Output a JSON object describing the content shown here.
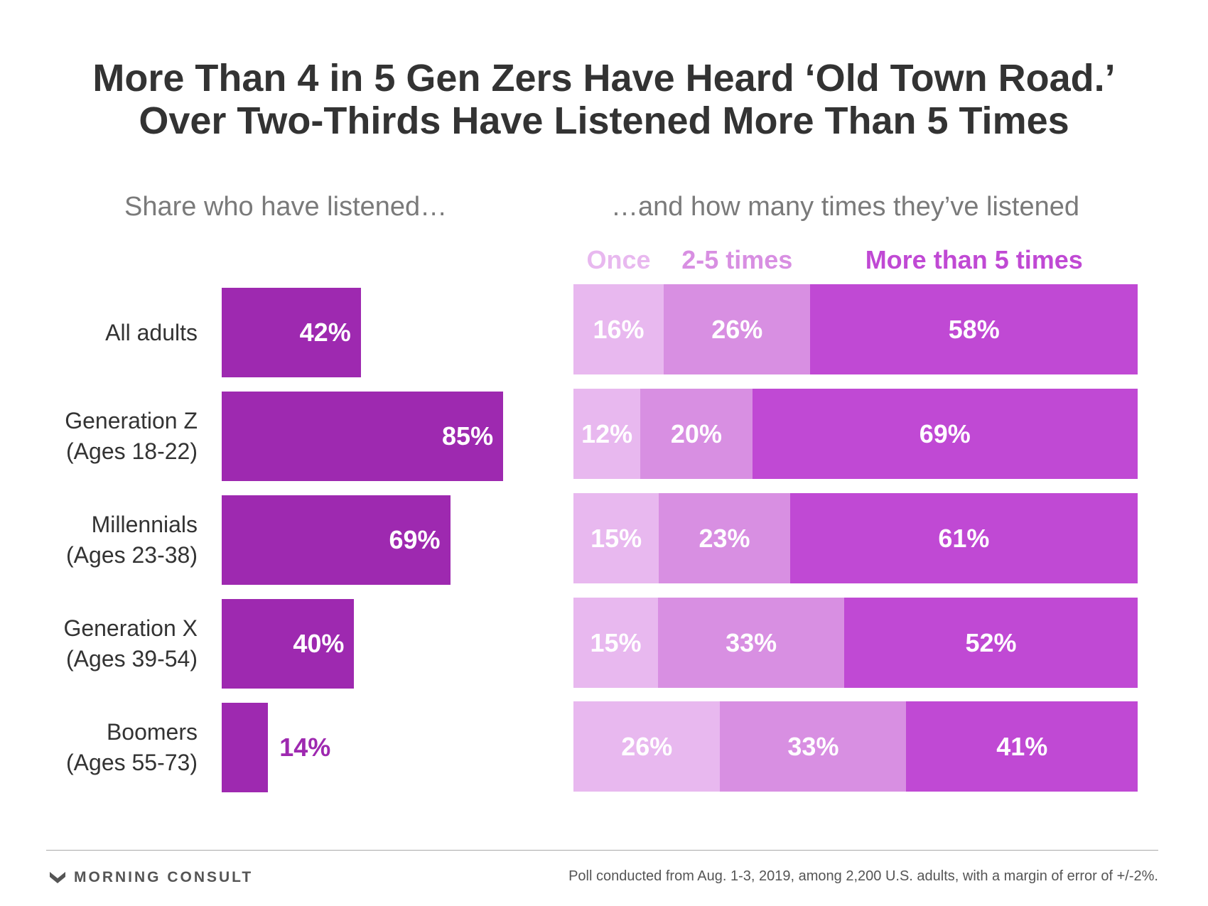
{
  "title_lines": [
    "More Than 4 in 5 Gen Zers Have Heard ‘Old Town Road.’",
    "Over Two-Thirds Have Listened More Than 5 Times"
  ],
  "subtitle_left": "Share who have listened…",
  "subtitle_right": "…and how many times they’ve listened",
  "colors": {
    "left_bar": "#9e29b0",
    "once": "#e8b8ef",
    "two_to_five": "#d88fe2",
    "more_than_five": "#c049d4",
    "text_dark": "#333333"
  },
  "chart_data": [
    {
      "type": "bar",
      "orientation": "horizontal",
      "title": "Share who have listened…",
      "categories": [
        [
          "All adults"
        ],
        [
          "Generation Z",
          "(Ages 18-22)"
        ],
        [
          "Millennials",
          "(Ages 23-38)"
        ],
        [
          "Generation X",
          "(Ages 39-54)"
        ],
        [
          "Boomers",
          "(Ages 55-73)"
        ]
      ],
      "values": [
        42,
        85,
        69,
        40,
        14
      ],
      "value_labels": [
        "42%",
        "85%",
        "69%",
        "40%",
        "14%"
      ],
      "xlim": [
        0,
        100
      ],
      "grid": false
    },
    {
      "type": "bar",
      "orientation": "horizontal",
      "stacked": true,
      "title": "…and how many times they’ve listened",
      "categories": [
        "All adults",
        "Generation Z",
        "Millennials",
        "Generation X",
        "Boomers"
      ],
      "legend_placement": "top",
      "series": [
        {
          "name": "Once",
          "values": [
            16,
            12,
            15,
            15,
            26
          ],
          "labels": [
            "16%",
            "12%",
            "15%",
            "15%",
            "26%"
          ]
        },
        {
          "name": "2-5 times",
          "values": [
            26,
            20,
            23,
            33,
            33
          ],
          "labels": [
            "26%",
            "20%",
            "23%",
            "33%",
            "33%"
          ]
        },
        {
          "name": "More than 5 times",
          "values": [
            58,
            69,
            61,
            52,
            41
          ],
          "labels": [
            "58%",
            "69%",
            "61%",
            "52%",
            "41%"
          ]
        }
      ],
      "grid": false
    }
  ],
  "brand": "MORNING CONSULT",
  "footnote": "Poll conducted from Aug. 1-3, 2019, among 2,200 U.S. adults, with a margin of error of +/-2%."
}
